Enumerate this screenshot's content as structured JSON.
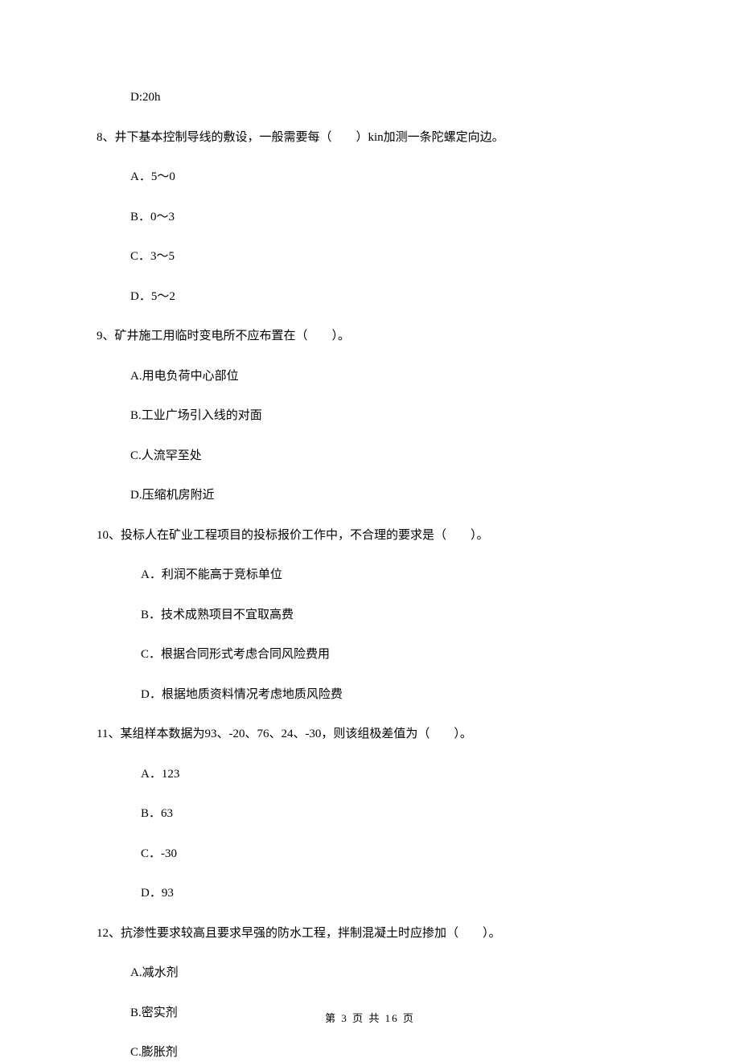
{
  "q7": {
    "option_d": "D:20h"
  },
  "q8": {
    "text": "8、井下基本控制导线的敷设，一般需要每（　　）kin加测一条陀螺定向边。",
    "option_a": "A．5～0",
    "option_b": "B．0～3",
    "option_c": "C．3～5",
    "option_d": "D．5～2"
  },
  "q9": {
    "text": "9、矿井施工用临时变电所不应布置在（　　）。",
    "option_a": "A.用电负荷中心部位",
    "option_b": "B.工业广场引入线的对面",
    "option_c": "C.人流罕至处",
    "option_d": "D.压缩机房附近"
  },
  "q10": {
    "text": "10、投标人在矿业工程项目的投标报价工作中，不合理的要求是（　　）。",
    "option_a": "A．利润不能高于竞标单位",
    "option_b": "B．技术成熟项目不宜取高费",
    "option_c": "C．根据合同形式考虑合同风险费用",
    "option_d": "D．根据地质资料情况考虑地质风险费"
  },
  "q11": {
    "text": "11、某组样本数据为93、-20、76、24、-30，则该组极差值为（　　）。",
    "option_a": "A．123",
    "option_b": "B．63",
    "option_c": "C．-30",
    "option_d": "D．93"
  },
  "q12": {
    "text": "12、抗渗性要求较高且要求早强的防水工程，拌制混凝土时应掺加（　　）。",
    "option_a": "A.减水剂",
    "option_b": "B.密实剂",
    "option_c": "C.膨胀剂"
  },
  "footer": "第 3 页 共 16 页"
}
